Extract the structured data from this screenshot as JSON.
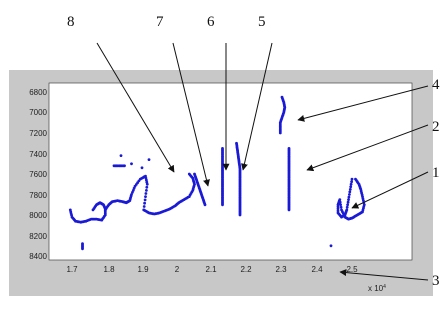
{
  "figure": {
    "colors": {
      "frame": "#c8c8c8",
      "plot_bg": "#ffffff",
      "stroke": "#1a1ad6",
      "arrow": "#111111"
    },
    "callouts": [
      "8",
      "7",
      "6",
      "5",
      "4",
      "2",
      "1",
      "3"
    ]
  },
  "chart_data": {
    "type": "scatter",
    "y_ticks": [
      "6800",
      "7000",
      "7200",
      "7400",
      "7600",
      "7800",
      "8000",
      "8200",
      "8400"
    ],
    "x_ticks": [
      "1.7",
      "1.8",
      "1.9",
      "2",
      "2.1",
      "2.2",
      "2.3",
      "2.4",
      "2.5"
    ],
    "x_exponent_label": "x 10",
    "x_exponent_power": "4",
    "xlim": [
      16500,
      26000
    ],
    "ylim": [
      6750,
      8450
    ],
    "y_reversed": true,
    "grid": false,
    "series": [
      {
        "x": [
          23000,
          23050,
          23080,
          23050,
          23000,
          22950,
          22950,
          22950
        ],
        "y": [
          6850,
          6900,
          6950,
          7000,
          7050,
          7100,
          7150,
          7200
        ]
      },
      {
        "x": [
          23200,
          23200,
          23200,
          23200,
          23200,
          23200,
          23200,
          23200,
          23200,
          23200,
          23200,
          23200,
          23200
        ],
        "y": [
          7350,
          7400,
          7450,
          7500,
          7550,
          7600,
          7650,
          7700,
          7750,
          7800,
          7850,
          7900,
          7950
        ]
      },
      {
        "x": [
          25000,
          24950,
          24900,
          24850,
          24800,
          24700,
          24600,
          24600,
          24650,
          24700,
          24800,
          24900,
          25000,
          25100,
          25200,
          25300,
          25350,
          25300,
          25250,
          25200,
          25100
        ],
        "y": [
          7650,
          7750,
          7850,
          7950,
          8000,
          8020,
          7980,
          7900,
          7850,
          7950,
          8020,
          8040,
          8030,
          8010,
          7990,
          7970,
          7900,
          7820,
          7750,
          7700,
          7650
        ]
      },
      {
        "x": [
          16950,
          17000,
          17100,
          17250,
          17400,
          17550,
          17700,
          17850,
          17950,
          17950,
          17900,
          17800,
          17700,
          17600
        ],
        "y": [
          7950,
          8020,
          8060,
          8070,
          8060,
          8040,
          8040,
          8050,
          8000,
          7940,
          7900,
          7880,
          7900,
          7950
        ]
      },
      {
        "x": [
          17950,
          18050,
          18150,
          18300,
          18450,
          18550,
          18650,
          18700,
          18800,
          18950,
          19100,
          19150,
          19100,
          19050
        ],
        "y": [
          7950,
          7900,
          7870,
          7860,
          7870,
          7880,
          7860,
          7800,
          7720,
          7650,
          7620,
          7700,
          7820,
          7950
        ]
      },
      {
        "x": [
          19050,
          19200,
          19350,
          19500,
          19650,
          19800,
          19950,
          20050,
          20200,
          20350,
          20450,
          20500,
          20450,
          20350
        ],
        "y": [
          7950,
          7980,
          7990,
          7980,
          7960,
          7940,
          7910,
          7880,
          7850,
          7820,
          7760,
          7700,
          7640,
          7600
        ]
      },
      {
        "x": [
          20500,
          20550,
          20600,
          20650,
          20700,
          20750,
          20800
        ],
        "y": [
          7600,
          7650,
          7700,
          7750,
          7800,
          7850,
          7900
        ]
      },
      {
        "x": [
          21300,
          21300,
          21300,
          21300,
          21300,
          21300,
          21300,
          21300,
          21300,
          21300,
          21300,
          21300
        ],
        "y": [
          7350,
          7400,
          7450,
          7500,
          7550,
          7600,
          7650,
          7700,
          7750,
          7800,
          7850,
          7900
        ]
      },
      {
        "x": [
          21700,
          21720,
          21740,
          21760,
          21780,
          21800,
          21800,
          21800,
          21800,
          21800,
          21800,
          21800,
          21800,
          21800,
          21800
        ],
        "y": [
          7300,
          7350,
          7400,
          7450,
          7500,
          7550,
          7600,
          7650,
          7700,
          7750,
          7800,
          7850,
          7900,
          7950,
          8000
        ]
      },
      {
        "x": [
          18200,
          18350,
          18500
        ],
        "y": [
          7520,
          7520,
          7520
        ]
      },
      {
        "x": [
          18400
        ],
        "y": [
          7420
        ]
      },
      {
        "x": [
          18700
        ],
        "y": [
          7500
        ]
      },
      {
        "x": [
          19000
        ],
        "y": [
          7540
        ]
      },
      {
        "x": [
          19200
        ],
        "y": [
          7460
        ]
      },
      {
        "x": [
          17300,
          17300
        ],
        "y": [
          8280,
          8330
        ]
      },
      {
        "x": [
          24400
        ],
        "y": [
          8300
        ]
      }
    ]
  }
}
